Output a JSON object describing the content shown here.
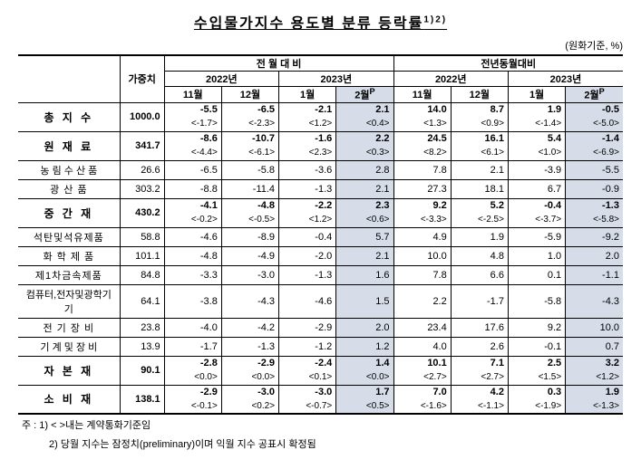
{
  "title": "수입물가지수 용도별 분류 등락률",
  "title_sup": "1)2)",
  "unit_label": "(원화기준, %)",
  "header": {
    "weight": "가중치",
    "mom": "전 월 대 비",
    "yoy": "전년동월대비",
    "y2022": "2022년",
    "y2023": "2023년",
    "m11": "11월",
    "m12": "12월",
    "m1": "1월",
    "m2": "2월",
    "p": "P"
  },
  "rows": [
    {
      "type": "main",
      "label": "총 지 수",
      "weight": "1000.0",
      "mom": [
        {
          "t": "-5.5",
          "b": "<-1.7>"
        },
        {
          "t": "-6.5",
          "b": "<-2.3>"
        },
        {
          "t": "-2.1",
          "b": "<1.2>"
        },
        {
          "t": "2.1",
          "b": "<0.4>",
          "hl": true
        }
      ],
      "yoy": [
        {
          "t": "14.0",
          "b": "<1.3>"
        },
        {
          "t": "8.7",
          "b": "<0.9>"
        },
        {
          "t": "1.9",
          "b": "<-1.4>"
        },
        {
          "t": "-0.5",
          "b": "<-5.0>",
          "hl": true
        }
      ]
    },
    {
      "type": "main",
      "label": "원 재 료",
      "weight": "341.7",
      "mom": [
        {
          "t": "-8.6",
          "b": "<-4.4>"
        },
        {
          "t": "-10.7",
          "b": "<-6.1>"
        },
        {
          "t": "-1.6",
          "b": "<2.3>"
        },
        {
          "t": "2.2",
          "b": "<0.3>",
          "hl": true
        }
      ],
      "yoy": [
        {
          "t": "24.5",
          "b": "<8.2>"
        },
        {
          "t": "16.1",
          "b": "<6.1>"
        },
        {
          "t": "5.4",
          "b": "<1.0>"
        },
        {
          "t": "-1.4",
          "b": "<-6.9>",
          "hl": true
        }
      ]
    },
    {
      "type": "sub",
      "label": "농 림 수 산 품",
      "weight": "26.6",
      "mom": [
        {
          "t": "-6.5"
        },
        {
          "t": "-5.8"
        },
        {
          "t": "-3.6"
        },
        {
          "t": "2.8",
          "hl": true
        }
      ],
      "yoy": [
        {
          "t": "7.8"
        },
        {
          "t": "2.1"
        },
        {
          "t": "-3.9"
        },
        {
          "t": "-5.5",
          "hl": true
        }
      ]
    },
    {
      "type": "sub",
      "label": "광 산 품",
      "weight": "303.2",
      "mom": [
        {
          "t": "-8.8"
        },
        {
          "t": "-11.4"
        },
        {
          "t": "-1.3"
        },
        {
          "t": "2.1",
          "hl": true
        }
      ],
      "yoy": [
        {
          "t": "27.3"
        },
        {
          "t": "18.1"
        },
        {
          "t": "6.7"
        },
        {
          "t": "-0.9",
          "hl": true
        }
      ]
    },
    {
      "type": "main",
      "label": "중 간 재",
      "weight": "430.2",
      "mom": [
        {
          "t": "-4.1",
          "b": "<-0.2>"
        },
        {
          "t": "-4.8",
          "b": "<-0.5>"
        },
        {
          "t": "-2.2",
          "b": "<1.2>"
        },
        {
          "t": "2.3",
          "b": "<0.6>",
          "hl": true
        }
      ],
      "yoy": [
        {
          "t": "9.2",
          "b": "<-3.3>"
        },
        {
          "t": "5.2",
          "b": "<-2.5>"
        },
        {
          "t": "-0.4",
          "b": "<-3.7>"
        },
        {
          "t": "-1.3",
          "b": "<-5.8>",
          "hl": true
        }
      ]
    },
    {
      "type": "sub",
      "label": "석탄및석유제품",
      "weight": "58.8",
      "mom": [
        {
          "t": "-4.6"
        },
        {
          "t": "-8.9"
        },
        {
          "t": "-0.4"
        },
        {
          "t": "5.7",
          "hl": true
        }
      ],
      "yoy": [
        {
          "t": "4.9"
        },
        {
          "t": "1.9"
        },
        {
          "t": "-5.9"
        },
        {
          "t": "-9.2",
          "hl": true
        }
      ]
    },
    {
      "type": "sub",
      "label": "화 학 제 품",
      "weight": "101.1",
      "mom": [
        {
          "t": "-4.8"
        },
        {
          "t": "-4.9"
        },
        {
          "t": "-2.0"
        },
        {
          "t": "2.1",
          "hl": true
        }
      ],
      "yoy": [
        {
          "t": "10.0"
        },
        {
          "t": "4.8"
        },
        {
          "t": "1.0"
        },
        {
          "t": "2.0",
          "hl": true
        }
      ]
    },
    {
      "type": "sub",
      "label": "제1차금속제품",
      "weight": "84.8",
      "mom": [
        {
          "t": "-3.3"
        },
        {
          "t": "-3.0"
        },
        {
          "t": "-1.3"
        },
        {
          "t": "1.6",
          "hl": true
        }
      ],
      "yoy": [
        {
          "t": "7.8"
        },
        {
          "t": "6.6"
        },
        {
          "t": "0.1"
        },
        {
          "t": "-1.1",
          "hl": true
        }
      ]
    },
    {
      "type": "sub",
      "label": "컴퓨터,전자및광학기기",
      "weight": "64.1",
      "mom": [
        {
          "t": "-3.8"
        },
        {
          "t": "-4.3"
        },
        {
          "t": "-4.6"
        },
        {
          "t": "1.5",
          "hl": true
        }
      ],
      "yoy": [
        {
          "t": "2.2"
        },
        {
          "t": "-1.7"
        },
        {
          "t": "-5.8"
        },
        {
          "t": "-4.3",
          "hl": true
        }
      ]
    },
    {
      "type": "sub",
      "label": "전 기 장 비",
      "weight": "23.8",
      "mom": [
        {
          "t": "-4.0"
        },
        {
          "t": "-4.2"
        },
        {
          "t": "-2.9"
        },
        {
          "t": "2.0",
          "hl": true
        }
      ],
      "yoy": [
        {
          "t": "23.4"
        },
        {
          "t": "17.6"
        },
        {
          "t": "9.2"
        },
        {
          "t": "10.0",
          "hl": true
        }
      ]
    },
    {
      "type": "sub",
      "label": "기 계 및 장 비",
      "weight": "13.9",
      "mom": [
        {
          "t": "-1.7"
        },
        {
          "t": "-1.3"
        },
        {
          "t": "-1.2"
        },
        {
          "t": "1.2",
          "hl": true
        }
      ],
      "yoy": [
        {
          "t": "4.0"
        },
        {
          "t": "2.6"
        },
        {
          "t": "-0.1"
        },
        {
          "t": "0.7",
          "hl": true
        }
      ]
    },
    {
      "type": "main",
      "label": "자 본 재",
      "weight": "90.1",
      "mom": [
        {
          "t": "-2.8",
          "b": "<0.0>"
        },
        {
          "t": "-2.9",
          "b": "<0.0>"
        },
        {
          "t": "-2.4",
          "b": "<0.1>"
        },
        {
          "t": "1.4",
          "b": "<0.0>",
          "hl": true
        }
      ],
      "yoy": [
        {
          "t": "10.1",
          "b": "<2.7>"
        },
        {
          "t": "7.1",
          "b": "<2.7>"
        },
        {
          "t": "2.5",
          "b": "<1.5>"
        },
        {
          "t": "3.2",
          "b": "<1.2>",
          "hl": true
        }
      ]
    },
    {
      "type": "main",
      "label": "소 비 재",
      "weight": "138.1",
      "mom": [
        {
          "t": "-2.9",
          "b": "<-0.1>"
        },
        {
          "t": "-3.0",
          "b": "<0.2>"
        },
        {
          "t": "-3.0",
          "b": "<-0.7>"
        },
        {
          "t": "1.7",
          "b": "<0.5>",
          "hl": true
        }
      ],
      "yoy": [
        {
          "t": "7.0",
          "b": "<-1.6>"
        },
        {
          "t": "4.2",
          "b": "<-1.1>"
        },
        {
          "t": "0.3",
          "b": "<-1.9>"
        },
        {
          "t": "1.9",
          "b": "<-1.3>",
          "hl": true
        }
      ]
    }
  ],
  "footnote1": "주 : 1) < >내는 계약통화기준임",
  "footnote2": "2) 당월 지수는 잠정치(preliminary)이며 익월 지수 공표시 확정됨"
}
